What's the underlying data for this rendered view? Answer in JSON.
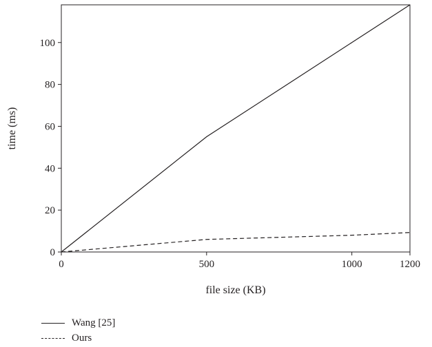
{
  "chart_data": {
    "type": "line",
    "xlabel": "file size (KB)",
    "ylabel": "time (ms)",
    "xlim": [
      0,
      1200
    ],
    "ylim": [
      0,
      118
    ],
    "xticks": [
      0,
      500,
      1000,
      1200
    ],
    "yticks": [
      0,
      20,
      40,
      60,
      80,
      100
    ],
    "grid": false,
    "legend_position": "bottom-left",
    "x": [
      0,
      500,
      1000,
      1200
    ],
    "series": [
      {
        "name": "Wang [25]",
        "style": "solid",
        "values": [
          0,
          55,
          100,
          118
        ]
      },
      {
        "name": "Ours",
        "style": "dashed",
        "values": [
          0,
          6,
          8,
          9.3
        ]
      }
    ]
  }
}
